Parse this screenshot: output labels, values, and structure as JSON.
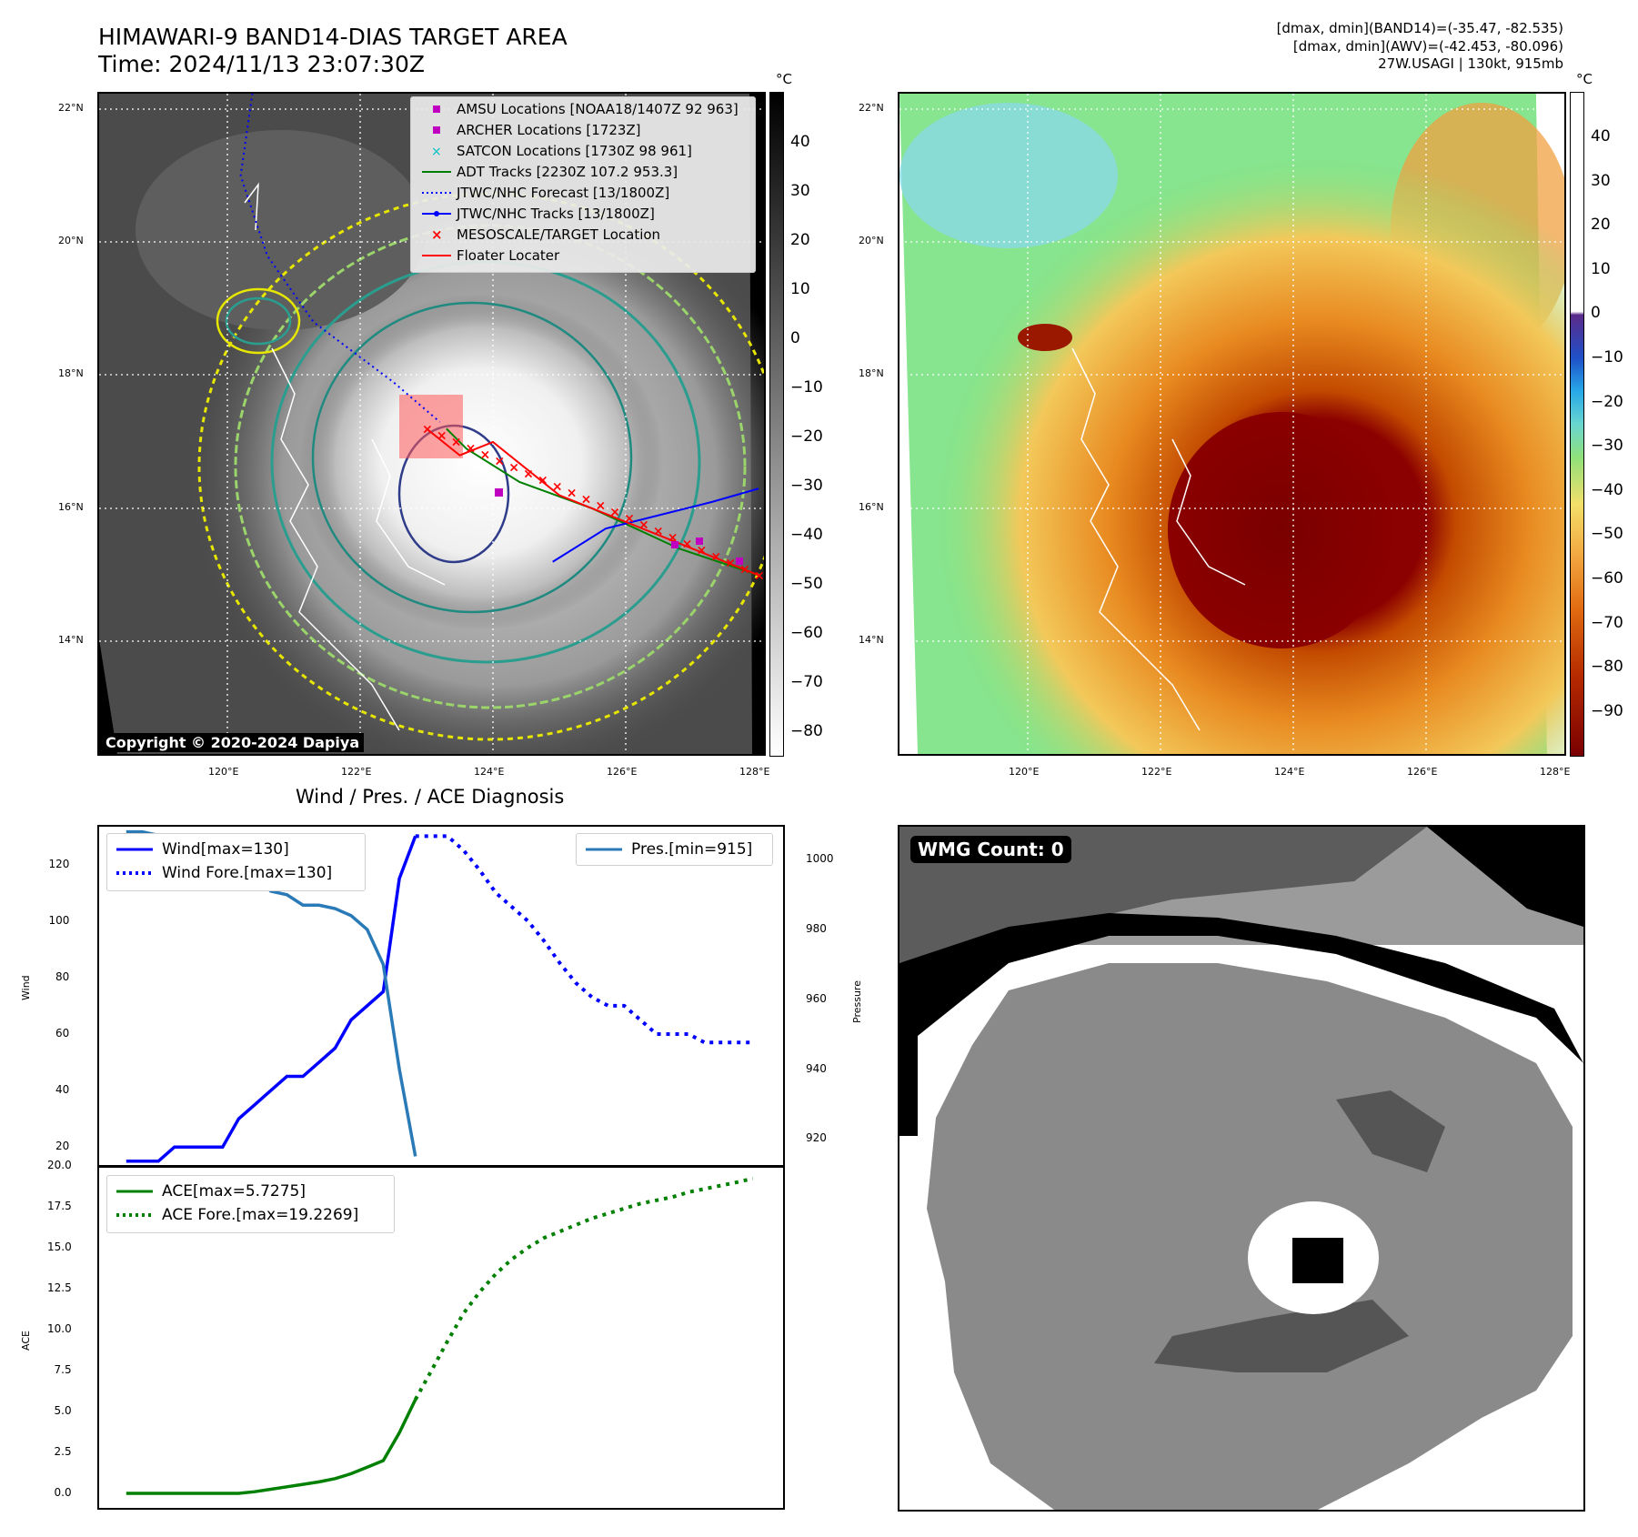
{
  "header": {
    "title_line1": "HIMAWARI-9 BAND14-DIAS TARGET AREA",
    "title_line2": "Time: 2024/11/13 23:07:30Z",
    "info_line1": "[dmax, dmin](BAND14)=(-35.47, -82.535)",
    "info_line2": "[dmax, dmin](AWV)=(-42.453, -80.096)",
    "info_line3": "27W.USAGI | 130kt, 915mb"
  },
  "map": {
    "lat_ticks": [
      "22°N",
      "20°N",
      "18°N",
      "16°N",
      "14°N"
    ],
    "lon_ticks": [
      "120°E",
      "122°E",
      "124°E",
      "126°E",
      "128°E"
    ],
    "unit": "°C",
    "copyright": "Copyright © 2020-2024 Dapiya",
    "legend": [
      {
        "label": "AMSU Locations [NOAA18/1407Z 92 963]",
        "color": "#c000c0"
      },
      {
        "label": "ARCHER Locations [1723Z]",
        "color": "#c000c0"
      },
      {
        "label": "SATCON Locations [1730Z 98 961]",
        "color": "#00c0c0"
      },
      {
        "label": "ADT Tracks [2230Z 107.2 953.3]",
        "color": "#008000"
      },
      {
        "label": "JTWC/NHC Forecast [13/1800Z]",
        "color": "#0000ff"
      },
      {
        "label": "JTWC/NHC Tracks [13/1800Z]",
        "color": "#0000ff"
      },
      {
        "label": "MESOSCALE/TARGET Location",
        "color": "#ff0000"
      },
      {
        "label": "Floater Locater",
        "color": "#ff0000"
      }
    ],
    "cbar_gray_ticks": [
      "40",
      "30",
      "20",
      "10",
      "0",
      "−10",
      "−20",
      "−30",
      "−40",
      "−50",
      "−60",
      "−70",
      "−80"
    ],
    "cbar_color_ticks": [
      "40",
      "30",
      "20",
      "10",
      "0",
      "−10",
      "−20",
      "−30",
      "−40",
      "−50",
      "−60",
      "−70",
      "−80",
      "−90"
    ],
    "track_lonlat": [
      [
        124.9,
        15.2
      ],
      [
        125.7,
        15.7
      ],
      [
        126.5,
        15.9
      ],
      [
        127.3,
        16.1
      ],
      [
        128.0,
        16.3
      ]
    ],
    "forecast_lonlat": [
      [
        120.4,
        22.4
      ],
      [
        120.2,
        21.0
      ],
      [
        120.6,
        19.8
      ],
      [
        121.3,
        18.8
      ],
      [
        122.5,
        17.9
      ],
      [
        123.2,
        17.3
      ]
    ],
    "adt_lonlat": [
      [
        123.3,
        17.2
      ],
      [
        123.6,
        16.9
      ],
      [
        124.4,
        16.4
      ],
      [
        125.5,
        16.0
      ],
      [
        126.8,
        15.4
      ],
      [
        128.0,
        15.0
      ]
    ],
    "floater_lonlat": [
      [
        123.0,
        17.2
      ],
      [
        123.5,
        16.8
      ],
      [
        124.0,
        17.0
      ],
      [
        125.0,
        16.2
      ],
      [
        128.0,
        15.0
      ]
    ]
  },
  "wind_panel": {
    "title": "Wind / Pres. / ACE Diagnosis",
    "ylabel_left": "Wind",
    "ylabel_right": "Pressure",
    "wind_ticks": [
      "120",
      "100",
      "80",
      "60",
      "40",
      "20"
    ],
    "pres_ticks": [
      "1000",
      "980",
      "960",
      "940",
      "920"
    ],
    "legend_wind": "Wind[max=130]",
    "legend_wind_fore": "Wind Fore.[max=130]",
    "legend_pres": "Pres.[min=915]"
  },
  "ace_panel": {
    "ylabel": "ACE",
    "ticks": [
      "20.0",
      "17.5",
      "15.0",
      "12.5",
      "10.0",
      "7.5",
      "5.0",
      "2.5",
      "0.0"
    ],
    "legend_ace": "ACE[max=5.7275]",
    "legend_ace_fore": "ACE Fore.[max=19.2269]"
  },
  "wmg": {
    "badge": "WMG Count: 0"
  },
  "chart_data": [
    {
      "type": "line",
      "title": "Wind / Pres. / ACE Diagnosis",
      "ylabel": "Wind",
      "y2label": "Pressure",
      "ylim": [
        13,
        134
      ],
      "y2lim": [
        912,
        1010
      ],
      "x": [
        0,
        1,
        2,
        3,
        4,
        5,
        6,
        7,
        8,
        9,
        10,
        11,
        12,
        13,
        14,
        15,
        16,
        17,
        18,
        19,
        20,
        21,
        22,
        23,
        24,
        25,
        26,
        27,
        28,
        29,
        30,
        31,
        32,
        33,
        34,
        35,
        36,
        37,
        38,
        39
      ],
      "series": [
        {
          "name": "Wind[max=130]",
          "x": [
            0,
            1,
            2,
            3,
            4,
            5,
            6,
            7,
            8,
            9,
            10,
            11,
            12,
            13,
            14,
            15,
            16,
            17,
            18
          ],
          "values": [
            15,
            15,
            15,
            20,
            20,
            20,
            20,
            30,
            35,
            40,
            45,
            45,
            50,
            55,
            65,
            70,
            75,
            115,
            130
          ]
        },
        {
          "name": "Wind Fore.[max=130]",
          "x": [
            18,
            19,
            20,
            21,
            22,
            23,
            24,
            25,
            26,
            27,
            28,
            29,
            30,
            31,
            32,
            33,
            34,
            35,
            36,
            37,
            38,
            39
          ],
          "values": [
            130,
            130,
            130,
            125,
            118,
            110,
            105,
            100,
            93,
            85,
            78,
            73,
            70,
            70,
            65,
            60,
            60,
            60,
            57,
            57,
            57,
            57
          ]
        },
        {
          "name": "Pres.[min=915]",
          "axis": "right",
          "x": [
            0,
            1,
            2,
            3,
            4,
            5,
            6,
            7,
            8,
            9,
            10,
            11,
            12,
            13,
            14,
            15,
            16,
            17,
            18
          ],
          "values": [
            1008,
            1008,
            1007,
            1006,
            1006,
            1004,
            1001,
            998,
            996,
            991,
            990,
            987,
            987,
            986,
            984,
            980,
            970,
            940,
            915
          ]
        }
      ]
    },
    {
      "type": "line",
      "ylabel": "ACE",
      "ylim": [
        -1,
        20
      ],
      "x": [
        0,
        1,
        2,
        3,
        4,
        5,
        6,
        7,
        8,
        9,
        10,
        11,
        12,
        13,
        14,
        15,
        16,
        17,
        18,
        19,
        20,
        21,
        22,
        23,
        24,
        25,
        26,
        27,
        28,
        29,
        30,
        31,
        32,
        33,
        34,
        35,
        36,
        37,
        38,
        39
      ],
      "series": [
        {
          "name": "ACE[max=5.7275]",
          "x": [
            0,
            1,
            2,
            3,
            4,
            5,
            6,
            7,
            8,
            9,
            10,
            11,
            12,
            13,
            14,
            15,
            16,
            17,
            18
          ],
          "values": [
            0,
            0,
            0,
            0,
            0,
            0,
            0,
            0,
            0.1,
            0.25,
            0.4,
            0.55,
            0.7,
            0.9,
            1.2,
            1.6,
            2.0,
            3.7,
            5.73
          ]
        },
        {
          "name": "ACE Fore.[max=19.2269]",
          "x": [
            18,
            19,
            20,
            21,
            22,
            23,
            24,
            25,
            26,
            27,
            28,
            29,
            30,
            31,
            32,
            33,
            34,
            35,
            36,
            37,
            38,
            39
          ],
          "values": [
            5.73,
            7.5,
            9.3,
            11.0,
            12.3,
            13.4,
            14.3,
            15.0,
            15.6,
            16.0,
            16.4,
            16.8,
            17.1,
            17.4,
            17.7,
            17.9,
            18.1,
            18.4,
            18.6,
            18.8,
            19.0,
            19.23
          ]
        }
      ]
    }
  ]
}
